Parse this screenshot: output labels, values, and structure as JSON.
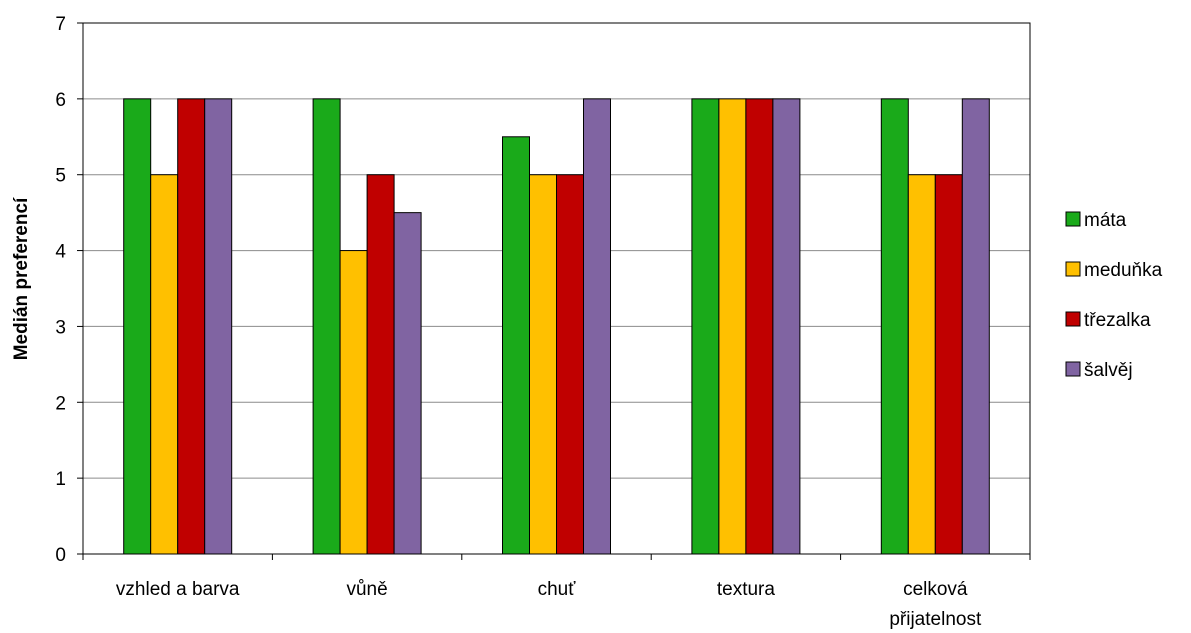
{
  "chart_data": {
    "type": "bar",
    "title": "",
    "xlabel": "",
    "ylabel": "Medián preferencí",
    "ylim": [
      0,
      7
    ],
    "yticks": [
      0,
      1,
      2,
      3,
      4,
      5,
      6,
      7
    ],
    "grid": true,
    "legend_position": "right",
    "categories": [
      [
        "vzhled a barva"
      ],
      [
        "vůně"
      ],
      [
        "chuť"
      ],
      [
        "textura"
      ],
      [
        "celková",
        "přijatelnost"
      ]
    ],
    "series": [
      {
        "name": "máta",
        "color": "#1aaa1a",
        "values": [
          6,
          6,
          5.5,
          6,
          6
        ]
      },
      {
        "name": "meduňka",
        "color": "#ffc000",
        "values": [
          5,
          4,
          5,
          6,
          5
        ]
      },
      {
        "name": "třezalka",
        "color": "#c00000",
        "values": [
          6,
          5,
          5,
          6,
          5
        ]
      },
      {
        "name": "šalvěj",
        "color": "#8064a2",
        "values": [
          6,
          4.5,
          6,
          6,
          6
        ]
      }
    ]
  }
}
